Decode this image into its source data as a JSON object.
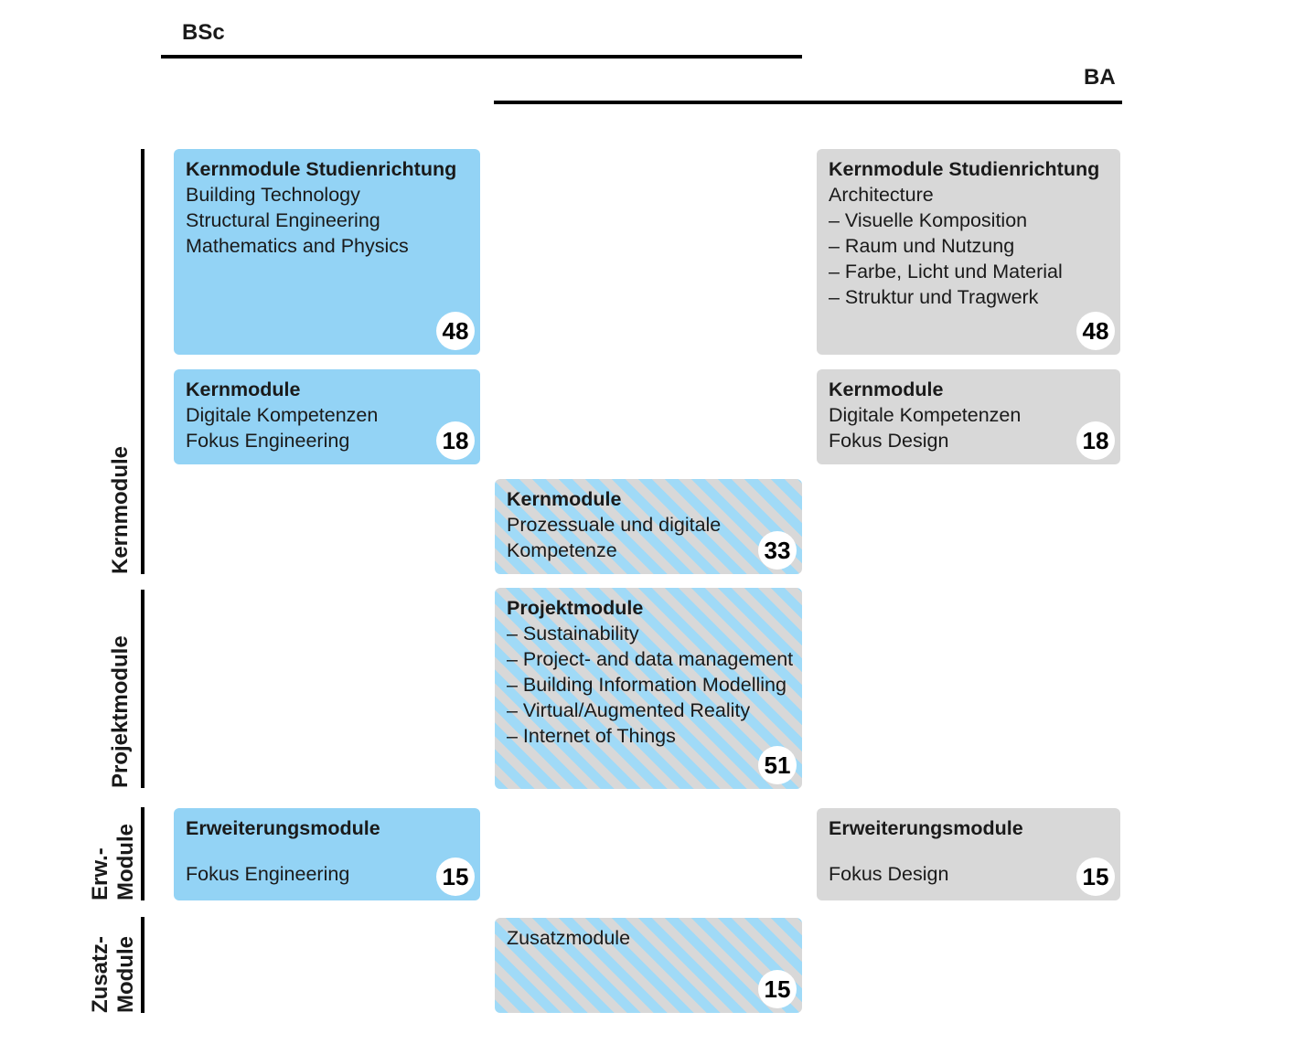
{
  "header": {
    "bsc_label": "BSc",
    "ba_label": "BA"
  },
  "sidebar": {
    "kernmodule_label": "Kernmodule",
    "projektmodule_label": "Projektmodule",
    "erw_label_line1": "Erw.-",
    "erw_label_line2": "Module",
    "zusatz_label_line1": "Zusatz-",
    "zusatz_label_line2": "Module"
  },
  "boxes": [
    {
      "title": "Kernmodule Studienrichtung",
      "lines": [
        "Building Technology",
        "Structural Engineering",
        "Mathematics and Physics"
      ],
      "credits": "48",
      "variant": "bsc-blue"
    },
    {
      "title": "Kernmodule Studienrichtung",
      "lines": [
        "Architecture",
        "– Visuelle Komposition",
        "– Raum und Nutzung",
        "– Farbe, Licht und Material",
        "– Struktur und Tragwerk"
      ],
      "credits": "48",
      "variant": "ba-gray"
    },
    {
      "title": "Kernmodule",
      "lines": [
        "Digitale Kompetenzen",
        "Fokus Engineering"
      ],
      "credits": "18",
      "variant": "bsc-blue"
    },
    {
      "title": "Kernmodule",
      "lines": [
        "Digitale Kompetenzen",
        "Fokus Design"
      ],
      "credits": "18",
      "variant": "ba-gray"
    },
    {
      "title": "Kernmodule",
      "lines": [
        "Prozessuale und digitale",
        "Kompetenze"
      ],
      "credits": "33",
      "variant": "shared-striped"
    },
    {
      "title": "Projektmodule",
      "lines": [
        "– Sustainability",
        "– Project- and data management",
        "– Building Information Modelling",
        "– Virtual/Augmented Reality",
        "– Internet of Things"
      ],
      "credits": "51",
      "variant": "shared-striped"
    },
    {
      "title": "Erweiterungsmodule",
      "lines": [
        "Fokus Engineering"
      ],
      "credits": "15",
      "variant": "bsc-blue"
    },
    {
      "title": "Erweiterungsmodule",
      "lines": [
        "Fokus Design"
      ],
      "credits": "15",
      "variant": "ba-gray"
    },
    {
      "title": "Zusatzmodule",
      "lines": [],
      "credits": "15",
      "variant": "shared-striped"
    }
  ],
  "colors": {
    "bsc_box_blue": "#93d3f5",
    "ba_box_gray": "#d8d8d8",
    "stripe_blue": "#a0daf7",
    "stripe_gray": "#d8d8d8",
    "badge_background": "#ffffff",
    "text": "#1a1a1a",
    "rule_black": "#000000"
  }
}
